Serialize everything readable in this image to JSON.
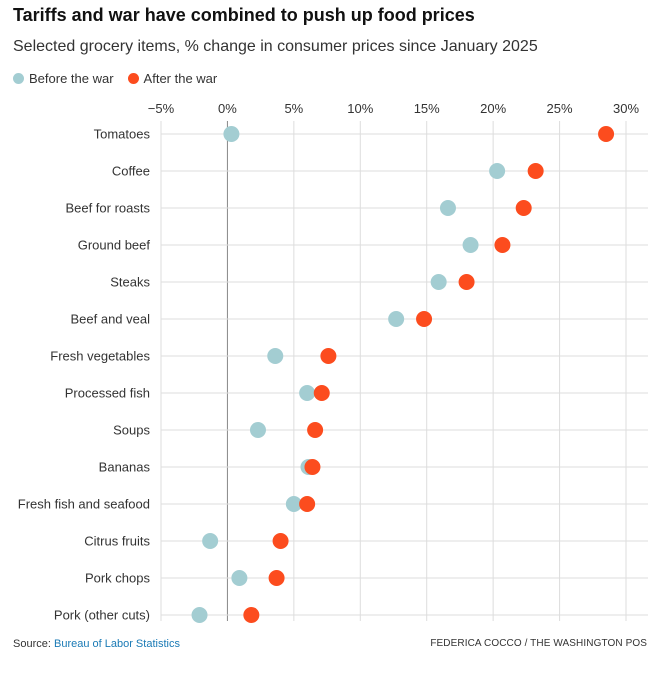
{
  "header": {
    "title": "Tariffs and war have combined to push up food prices",
    "subtitle": "Selected grocery items, % change in consumer prices since January 2025"
  },
  "footer": {
    "source_label": "Source:",
    "source_link": "Bureau of Labor Statistics",
    "credit": "FEDERICA COCCO / THE WASHINGTON POS"
  },
  "colors": {
    "before": "#a3cdd2",
    "after": "#fc4c1e",
    "grid": "#dddddd",
    "zero_line": "#888888"
  },
  "chart_data": {
    "type": "scatter",
    "title": "Tariffs and war have combined to push up food prices",
    "subtitle": "Selected grocery items, % change in consumer prices since January 2025",
    "xlim": [
      -5,
      30
    ],
    "x_ticks": [
      -5,
      0,
      5,
      10,
      15,
      20,
      25,
      30
    ],
    "x_tick_labels": [
      "−5%",
      "0%",
      "5%",
      "10%",
      "15%",
      "20%",
      "25%",
      "30%"
    ],
    "grid": true,
    "legend_position": "top-left",
    "categories": [
      "Tomatoes",
      "Coffee",
      "Beef for roasts",
      "Ground beef",
      "Steaks",
      "Beef and veal",
      "Fresh vegetables",
      "Processed fish",
      "Soups",
      "Bananas",
      "Fresh fish and seafood",
      "Citrus fruits",
      "Pork chops",
      "Pork (other cuts)"
    ],
    "series": [
      {
        "name": "Before the war",
        "color": "#a3cdd2",
        "values": [
          0.3,
          20.3,
          16.6,
          18.3,
          15.9,
          12.7,
          3.6,
          6.0,
          2.3,
          6.1,
          5.0,
          -1.3,
          0.9,
          -2.1
        ]
      },
      {
        "name": "After the war",
        "color": "#fc4c1e",
        "values": [
          28.5,
          23.2,
          22.3,
          20.7,
          18.0,
          14.8,
          7.6,
          7.1,
          6.6,
          6.4,
          6.0,
          4.0,
          3.7,
          1.8
        ]
      }
    ]
  }
}
